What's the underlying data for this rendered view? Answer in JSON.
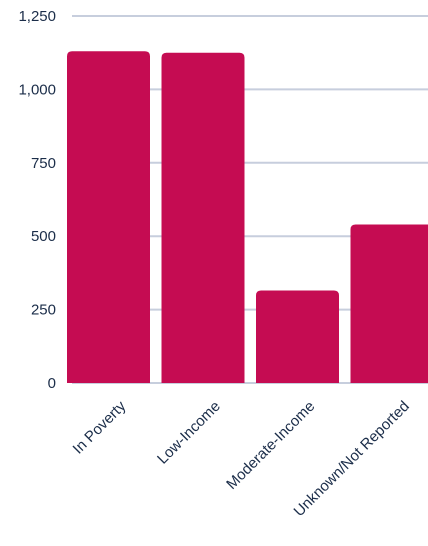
{
  "chart_data": {
    "type": "bar",
    "categories": [
      "In Poverty",
      "Low-Income",
      "Moderate-Income",
      "Unknown/Not Reported"
    ],
    "values": [
      1130,
      1125,
      315,
      540
    ],
    "ylim": [
      0,
      1250
    ],
    "yticks": [
      0,
      250,
      500,
      750,
      1000,
      1250
    ],
    "ytick_labels": [
      "0",
      "250",
      "500",
      "750",
      "1,000",
      "1,250"
    ],
    "title": "",
    "xlabel": "",
    "ylabel": "",
    "grid": true,
    "colors": {
      "bar": "#c50c52",
      "grid": "#c7cedd",
      "text": "#1b2d49",
      "background": "#ffffff"
    }
  }
}
